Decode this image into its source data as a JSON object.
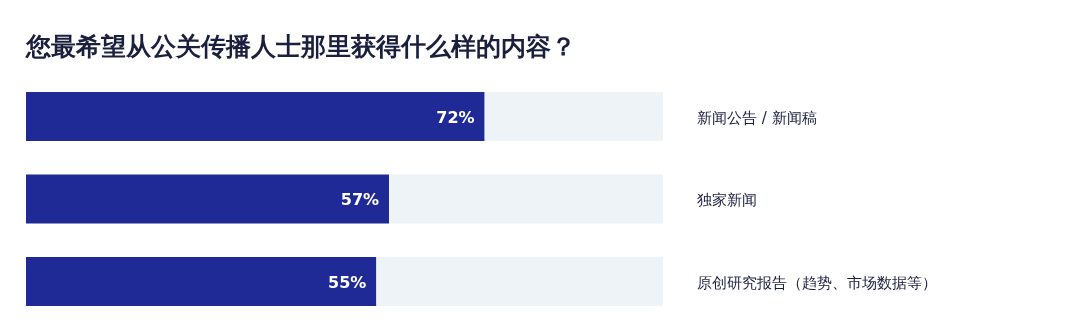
{
  "chart_data": {
    "type": "bar",
    "orientation": "horizontal",
    "stacked": true,
    "title": "您最希望从公关传播人士那里获得什么样的内容？",
    "categories": [
      "新闻公告 / 新闻稿",
      "独家新闻",
      "原创研究报告（趋势、市场数据等）"
    ],
    "xlim": [
      0,
      100
    ],
    "tick_labels": "y",
    "series": [
      {
        "color": "#1f2a96",
        "values": [
          72,
          57,
          55
        ],
        "value_labels": [
          "72%",
          "57%",
          "55%"
        ]
      },
      {
        "color": "#eef3f7",
        "values": [
          28,
          43,
          45
        ]
      }
    ]
  }
}
